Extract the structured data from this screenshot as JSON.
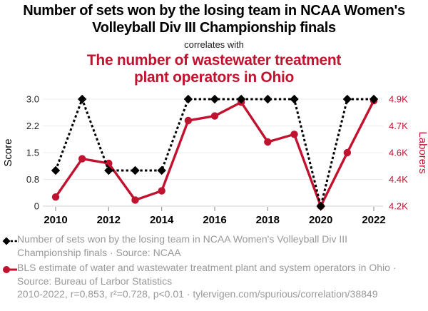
{
  "header": {
    "title_line1": "Number of sets won by the losing team in NCAA Women's",
    "title_line2": "Volleyball Div III Championship finals",
    "correlates_with": "correlates with",
    "subtitle_line1": "The number of wastewater treatment",
    "subtitle_line2": "plant operators in Ohio"
  },
  "colors": {
    "primary_series": "#000000",
    "secondary_series": "#c11230",
    "legend_text": "#999999",
    "gridline": "#ececec",
    "axis_line": "#cfcfcf"
  },
  "chart_data": {
    "type": "line",
    "x": [
      2010,
      2011,
      2012,
      2013,
      2014,
      2015,
      2016,
      2017,
      2018,
      2019,
      2020,
      2021,
      2022
    ],
    "x_ticks": [
      2010,
      2012,
      2014,
      2016,
      2018,
      2020,
      2022
    ],
    "x_tick_labels": [
      "2010",
      "2012",
      "2014",
      "2016",
      "2018",
      "2020",
      "2022"
    ],
    "left_axis": {
      "label": "Score",
      "range": [
        0,
        3
      ],
      "ticks": [
        0,
        0.75,
        1.5,
        2.25,
        3
      ],
      "tick_labels": [
        "0",
        "0.8",
        "1.5",
        "2.2",
        "3.0"
      ]
    },
    "right_axis": {
      "label": "Laborers",
      "range": [
        4200,
        4900
      ],
      "ticks": [
        4200,
        4375,
        4550,
        4725,
        4900
      ],
      "tick_labels": [
        "4.2K",
        "4.4K",
        "4.6K",
        "4.7K",
        "4.9K"
      ]
    },
    "grid": "horizontal-only",
    "legend_position": "bottom",
    "series": [
      {
        "name": "Number of sets won by the losing team in NCAA Women's Volleyball Div III Championship finals",
        "axis": "left",
        "color": "#000000",
        "line_style": "dashed",
        "marker": "diamond",
        "values": [
          1,
          3,
          1,
          1,
          1,
          3,
          3,
          3,
          3,
          3,
          0,
          3,
          3
        ]
      },
      {
        "name": "BLS estimate of water and wastewater treatment plant and system operators in Ohio",
        "axis": "right",
        "color": "#c11230",
        "line_style": "solid",
        "marker": "circle",
        "values": [
          4260,
          4510,
          4480,
          4240,
          4300,
          4760,
          4790,
          4880,
          4620,
          4670,
          4200,
          4550,
          4890
        ]
      }
    ]
  },
  "legend": {
    "item1": "Number of sets won by the losing team in NCAA Women's Volleyball Div III Championship finals · Source: NCAA",
    "item2": "BLS estimate of water and wastewater treatment plant and system operators in Ohio · Source: Bureau of Larbor Statistics"
  },
  "footer": "2010-2022, r=0.853, r²=0.728, p<0.01 · tylervigen.com/spurious/correlation/38849"
}
